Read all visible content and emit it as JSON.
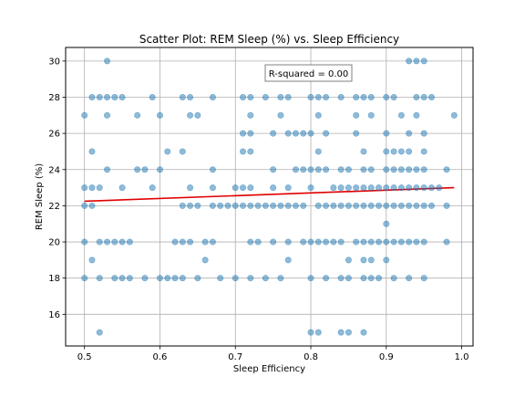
{
  "chart_data": {
    "type": "scatter",
    "title": "Scatter Plot: REM Sleep (%) vs. Sleep Efficiency",
    "xlabel": "Sleep Efficiency",
    "ylabel": "REM Sleep (%)",
    "annotation": "R-squared = 0.00",
    "xlim": [
      0.475,
      1.015
    ],
    "ylim": [
      14.25,
      30.75
    ],
    "xticks": [
      "0.5",
      "0.6",
      "0.7",
      "0.8",
      "0.9",
      "1.0"
    ],
    "yticks": [
      "16",
      "18",
      "20",
      "22",
      "24",
      "26",
      "28",
      "30"
    ],
    "grid": true,
    "colors": {
      "points": "#1f77b4",
      "trend": "#e00000"
    },
    "trendline": {
      "x": [
        0.5,
        0.99
      ],
      "y": [
        22.25,
        23.0
      ]
    },
    "points": [
      [
        0.53,
        30
      ],
      [
        0.93,
        30
      ],
      [
        0.94,
        30
      ],
      [
        0.95,
        30
      ],
      [
        0.51,
        28
      ],
      [
        0.52,
        28
      ],
      [
        0.53,
        28
      ],
      [
        0.54,
        28
      ],
      [
        0.55,
        28
      ],
      [
        0.59,
        28
      ],
      [
        0.63,
        28
      ],
      [
        0.64,
        28
      ],
      [
        0.67,
        28
      ],
      [
        0.71,
        28
      ],
      [
        0.72,
        28
      ],
      [
        0.74,
        28
      ],
      [
        0.76,
        28
      ],
      [
        0.77,
        28
      ],
      [
        0.8,
        28
      ],
      [
        0.81,
        28
      ],
      [
        0.82,
        28
      ],
      [
        0.84,
        28
      ],
      [
        0.86,
        28
      ],
      [
        0.87,
        28
      ],
      [
        0.88,
        28
      ],
      [
        0.9,
        28
      ],
      [
        0.91,
        28
      ],
      [
        0.94,
        28
      ],
      [
        0.95,
        28
      ],
      [
        0.96,
        28
      ],
      [
        0.5,
        27
      ],
      [
        0.53,
        27
      ],
      [
        0.57,
        27
      ],
      [
        0.6,
        27
      ],
      [
        0.64,
        27
      ],
      [
        0.65,
        27
      ],
      [
        0.72,
        27
      ],
      [
        0.76,
        27
      ],
      [
        0.81,
        27
      ],
      [
        0.86,
        27
      ],
      [
        0.88,
        27
      ],
      [
        0.92,
        27
      ],
      [
        0.94,
        27
      ],
      [
        0.99,
        27
      ],
      [
        0.71,
        26
      ],
      [
        0.72,
        26
      ],
      [
        0.75,
        26
      ],
      [
        0.77,
        26
      ],
      [
        0.78,
        26
      ],
      [
        0.79,
        26
      ],
      [
        0.8,
        26
      ],
      [
        0.82,
        26
      ],
      [
        0.86,
        26
      ],
      [
        0.9,
        26
      ],
      [
        0.93,
        26
      ],
      [
        0.95,
        26
      ],
      [
        0.51,
        25
      ],
      [
        0.61,
        25
      ],
      [
        0.63,
        25
      ],
      [
        0.71,
        25
      ],
      [
        0.72,
        25
      ],
      [
        0.81,
        25
      ],
      [
        0.87,
        25
      ],
      [
        0.9,
        25
      ],
      [
        0.91,
        25
      ],
      [
        0.92,
        25
      ],
      [
        0.93,
        25
      ],
      [
        0.95,
        25
      ],
      [
        0.53,
        24
      ],
      [
        0.57,
        24
      ],
      [
        0.58,
        24
      ],
      [
        0.6,
        24
      ],
      [
        0.67,
        24
      ],
      [
        0.75,
        24
      ],
      [
        0.78,
        24
      ],
      [
        0.79,
        24
      ],
      [
        0.8,
        24
      ],
      [
        0.81,
        24
      ],
      [
        0.82,
        24
      ],
      [
        0.84,
        24
      ],
      [
        0.85,
        24
      ],
      [
        0.87,
        24
      ],
      [
        0.88,
        24
      ],
      [
        0.9,
        24
      ],
      [
        0.91,
        24
      ],
      [
        0.92,
        24
      ],
      [
        0.93,
        24
      ],
      [
        0.94,
        24
      ],
      [
        0.95,
        24
      ],
      [
        0.98,
        24
      ],
      [
        0.5,
        23
      ],
      [
        0.51,
        23
      ],
      [
        0.52,
        23
      ],
      [
        0.55,
        23
      ],
      [
        0.59,
        23
      ],
      [
        0.64,
        23
      ],
      [
        0.67,
        23
      ],
      [
        0.7,
        23
      ],
      [
        0.71,
        23
      ],
      [
        0.72,
        23
      ],
      [
        0.75,
        23
      ],
      [
        0.77,
        23
      ],
      [
        0.8,
        23
      ],
      [
        0.83,
        23
      ],
      [
        0.84,
        23
      ],
      [
        0.85,
        23
      ],
      [
        0.86,
        23
      ],
      [
        0.87,
        23
      ],
      [
        0.88,
        23
      ],
      [
        0.89,
        23
      ],
      [
        0.9,
        23
      ],
      [
        0.91,
        23
      ],
      [
        0.92,
        23
      ],
      [
        0.93,
        23
      ],
      [
        0.94,
        23
      ],
      [
        0.95,
        23
      ],
      [
        0.96,
        23
      ],
      [
        0.97,
        23
      ],
      [
        0.5,
        22
      ],
      [
        0.51,
        22
      ],
      [
        0.63,
        22
      ],
      [
        0.64,
        22
      ],
      [
        0.65,
        22
      ],
      [
        0.67,
        22
      ],
      [
        0.68,
        22
      ],
      [
        0.69,
        22
      ],
      [
        0.7,
        22
      ],
      [
        0.71,
        22
      ],
      [
        0.72,
        22
      ],
      [
        0.73,
        22
      ],
      [
        0.74,
        22
      ],
      [
        0.75,
        22
      ],
      [
        0.76,
        22
      ],
      [
        0.77,
        22
      ],
      [
        0.78,
        22
      ],
      [
        0.79,
        22
      ],
      [
        0.81,
        22
      ],
      [
        0.82,
        22
      ],
      [
        0.83,
        22
      ],
      [
        0.84,
        22
      ],
      [
        0.85,
        22
      ],
      [
        0.86,
        22
      ],
      [
        0.87,
        22
      ],
      [
        0.88,
        22
      ],
      [
        0.89,
        22
      ],
      [
        0.9,
        22
      ],
      [
        0.91,
        22
      ],
      [
        0.92,
        22
      ],
      [
        0.93,
        22
      ],
      [
        0.94,
        22
      ],
      [
        0.95,
        22
      ],
      [
        0.96,
        22
      ],
      [
        0.98,
        22
      ],
      [
        0.9,
        21
      ],
      [
        0.5,
        20
      ],
      [
        0.52,
        20
      ],
      [
        0.53,
        20
      ],
      [
        0.54,
        20
      ],
      [
        0.55,
        20
      ],
      [
        0.56,
        20
      ],
      [
        0.62,
        20
      ],
      [
        0.63,
        20
      ],
      [
        0.64,
        20
      ],
      [
        0.66,
        20
      ],
      [
        0.67,
        20
      ],
      [
        0.72,
        20
      ],
      [
        0.73,
        20
      ],
      [
        0.75,
        20
      ],
      [
        0.77,
        20
      ],
      [
        0.79,
        20
      ],
      [
        0.8,
        20
      ],
      [
        0.81,
        20
      ],
      [
        0.82,
        20
      ],
      [
        0.83,
        20
      ],
      [
        0.84,
        20
      ],
      [
        0.86,
        20
      ],
      [
        0.87,
        20
      ],
      [
        0.88,
        20
      ],
      [
        0.89,
        20
      ],
      [
        0.9,
        20
      ],
      [
        0.91,
        20
      ],
      [
        0.92,
        20
      ],
      [
        0.93,
        20
      ],
      [
        0.94,
        20
      ],
      [
        0.95,
        20
      ],
      [
        0.98,
        20
      ],
      [
        0.51,
        19
      ],
      [
        0.66,
        19
      ],
      [
        0.77,
        19
      ],
      [
        0.85,
        19
      ],
      [
        0.87,
        19
      ],
      [
        0.88,
        19
      ],
      [
        0.9,
        19
      ],
      [
        0.5,
        18
      ],
      [
        0.52,
        18
      ],
      [
        0.54,
        18
      ],
      [
        0.55,
        18
      ],
      [
        0.56,
        18
      ],
      [
        0.58,
        18
      ],
      [
        0.6,
        18
      ],
      [
        0.61,
        18
      ],
      [
        0.62,
        18
      ],
      [
        0.63,
        18
      ],
      [
        0.65,
        18
      ],
      [
        0.68,
        18
      ],
      [
        0.7,
        18
      ],
      [
        0.72,
        18
      ],
      [
        0.74,
        18
      ],
      [
        0.76,
        18
      ],
      [
        0.8,
        18
      ],
      [
        0.82,
        18
      ],
      [
        0.84,
        18
      ],
      [
        0.85,
        18
      ],
      [
        0.87,
        18
      ],
      [
        0.88,
        18
      ],
      [
        0.89,
        18
      ],
      [
        0.91,
        18
      ],
      [
        0.93,
        18
      ],
      [
        0.95,
        18
      ],
      [
        0.52,
        15
      ],
      [
        0.8,
        15
      ],
      [
        0.81,
        15
      ],
      [
        0.84,
        15
      ],
      [
        0.85,
        15
      ],
      [
        0.87,
        15
      ]
    ]
  }
}
